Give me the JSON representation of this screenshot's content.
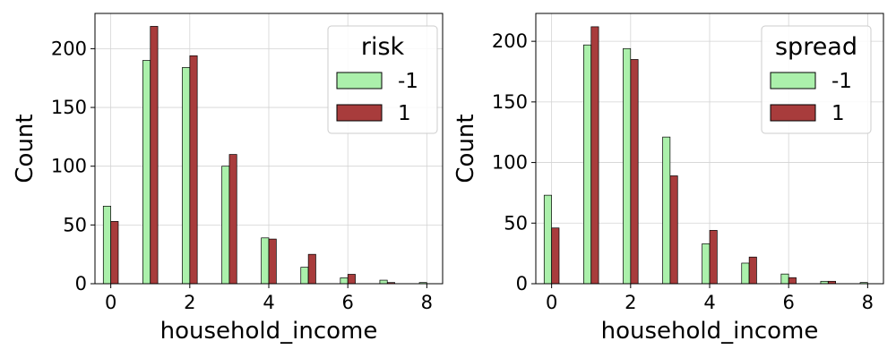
{
  "colors": {
    "series_neg": "#abf0ab",
    "series_pos": "#a83c3c",
    "grid": "#d3d3d3",
    "axis": "#000000"
  },
  "chart_data": [
    {
      "type": "bar",
      "xlabel": "household_income",
      "ylabel": "Count",
      "legend_title": "risk",
      "legend_position": "top-right",
      "grid": true,
      "xlim": [
        -0.4,
        8.4
      ],
      "ylim": [
        0,
        230
      ],
      "xticks": [
        0,
        2,
        4,
        6,
        8
      ],
      "yticks": [
        0,
        50,
        100,
        150,
        200
      ],
      "x": [
        0,
        1,
        2,
        3,
        4,
        5,
        6,
        7,
        8
      ],
      "series": [
        {
          "name": "-1",
          "values": [
            66,
            190,
            184,
            100,
            39,
            14,
            5,
            3,
            1
          ]
        },
        {
          "name": "1",
          "values": [
            53,
            219,
            194,
            110,
            38,
            25,
            8,
            1,
            0
          ]
        }
      ]
    },
    {
      "type": "bar",
      "xlabel": "household_income",
      "ylabel": "Count",
      "legend_title": "spread",
      "legend_position": "top-right",
      "grid": true,
      "xlim": [
        -0.4,
        8.4
      ],
      "ylim": [
        0,
        223
      ],
      "xticks": [
        0,
        2,
        4,
        6,
        8
      ],
      "yticks": [
        0,
        50,
        100,
        150,
        200
      ],
      "x": [
        0,
        1,
        2,
        3,
        4,
        5,
        6,
        7,
        8
      ],
      "series": [
        {
          "name": "-1",
          "values": [
            73,
            197,
            194,
            121,
            33,
            17,
            8,
            2,
            1
          ]
        },
        {
          "name": "1",
          "values": [
            46,
            212,
            185,
            89,
            44,
            22,
            5,
            2,
            0
          ]
        }
      ]
    }
  ]
}
